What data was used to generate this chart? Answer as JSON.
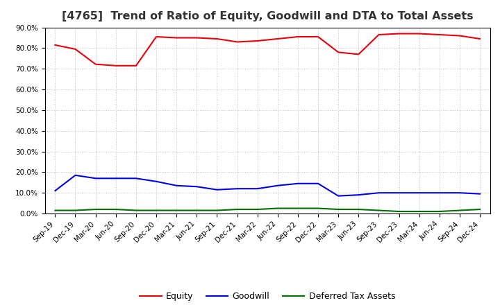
{
  "title": "[4765]  Trend of Ratio of Equity, Goodwill and DTA to Total Assets",
  "x_labels": [
    "Sep-19",
    "Dec-19",
    "Mar-20",
    "Jun-20",
    "Sep-20",
    "Dec-20",
    "Mar-21",
    "Jun-21",
    "Sep-21",
    "Dec-21",
    "Mar-22",
    "Jun-22",
    "Sep-22",
    "Dec-22",
    "Mar-23",
    "Jun-23",
    "Sep-23",
    "Dec-23",
    "Mar-24",
    "Jun-24",
    "Sep-24",
    "Dec-24"
  ],
  "equity": [
    81.5,
    79.5,
    72.2,
    71.5,
    71.5,
    85.5,
    85.0,
    85.0,
    84.5,
    83.0,
    83.5,
    84.5,
    85.5,
    85.5,
    78.0,
    77.0,
    86.5,
    87.0,
    87.0,
    86.5,
    86.0,
    84.5
  ],
  "goodwill": [
    11.0,
    18.5,
    17.0,
    17.0,
    17.0,
    15.5,
    13.5,
    13.0,
    11.5,
    12.0,
    12.0,
    13.5,
    14.5,
    14.5,
    8.5,
    9.0,
    10.0,
    10.0,
    10.0,
    10.0,
    10.0,
    9.5
  ],
  "dta": [
    1.5,
    1.5,
    2.0,
    2.0,
    1.5,
    1.5,
    1.5,
    1.5,
    1.5,
    2.0,
    2.0,
    2.5,
    2.5,
    2.5,
    2.0,
    2.0,
    1.5,
    1.0,
    1.0,
    1.0,
    1.5,
    2.0
  ],
  "equity_color": "#e8000a",
  "goodwill_color": "#0000e8",
  "dta_color": "#007000",
  "ylim": [
    0,
    90
  ],
  "yticks": [
    0,
    10,
    20,
    30,
    40,
    50,
    60,
    70,
    80,
    90
  ],
  "background_color": "#ffffff",
  "plot_bg_color": "#ffffff",
  "grid_color": "#888888",
  "title_color": "#333333",
  "title_fontsize": 11.5,
  "tick_fontsize": 7.5,
  "legend_labels": [
    "Equity",
    "Goodwill",
    "Deferred Tax Assets"
  ]
}
